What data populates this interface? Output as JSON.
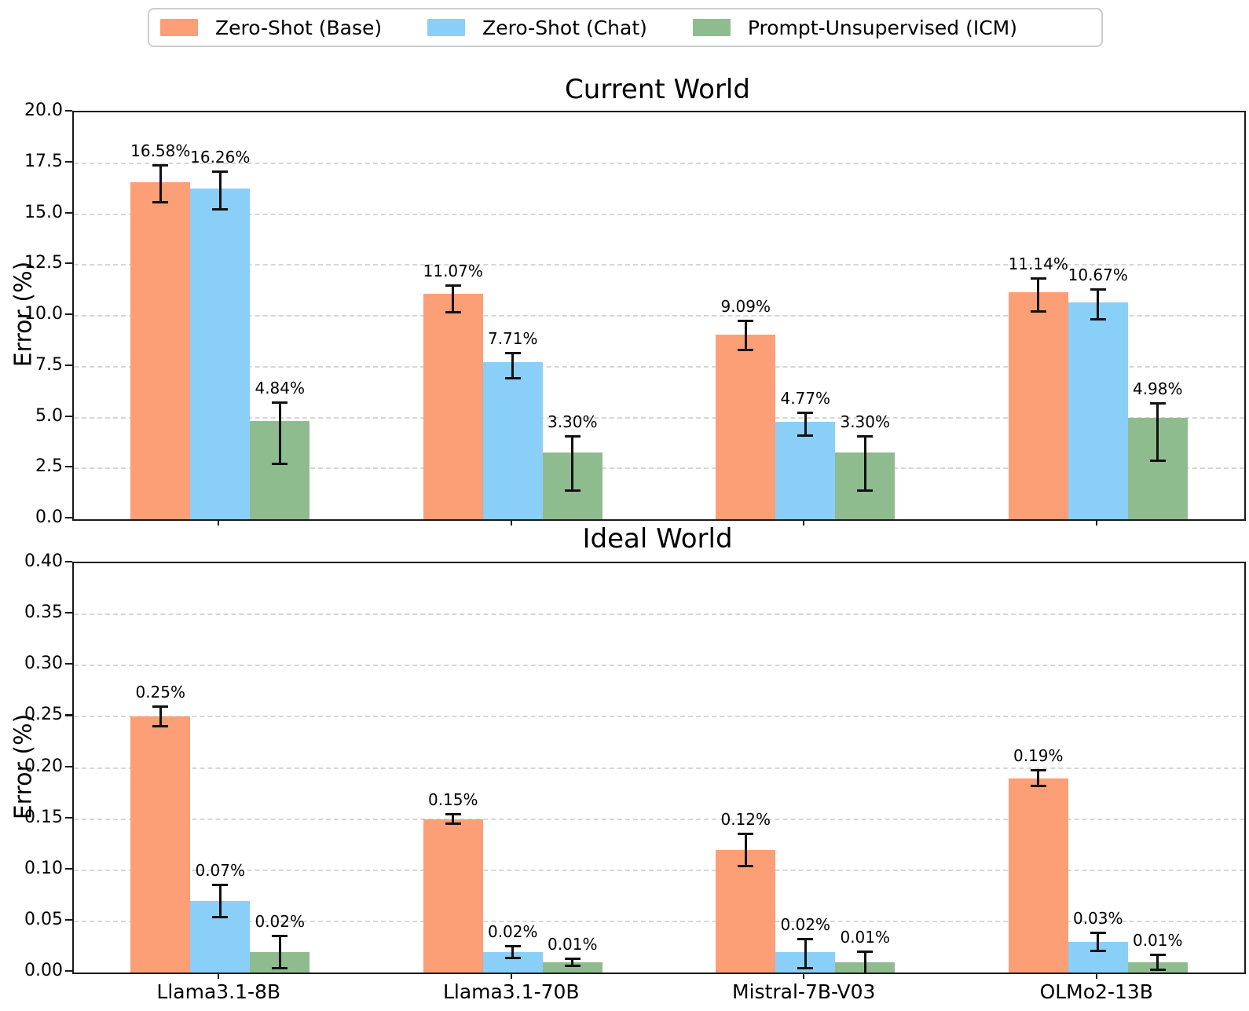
{
  "legend": {
    "items": [
      {
        "label": "Zero-Shot (Base)",
        "color": "#FC9E76"
      },
      {
        "label": "Zero-Shot (Chat)",
        "color": "#89CFF8"
      },
      {
        "label": "Prompt-Unsupervised (ICM)",
        "color": "#8FBC8F"
      }
    ]
  },
  "chart_data": [
    {
      "type": "bar",
      "title": "Current World",
      "ylabel": "Error (%)",
      "ylim": [
        0,
        20
      ],
      "ytick_labels": [
        "0.0",
        "2.5",
        "5.0",
        "7.5",
        "10.0",
        "12.5",
        "15.0",
        "17.5",
        "20.0"
      ],
      "grid": "horizontal-dashed",
      "legend_position": "top-outside",
      "categories": [
        "Llama3.1-8B",
        "Llama3.1-70B",
        "Mistral-7B-V03",
        "OLMo2-13B"
      ],
      "show_category_labels": false,
      "series": [
        {
          "name": "Zero-Shot (Base)",
          "color": "#FC9E76",
          "values": [
            16.58,
            11.07,
            9.09,
            11.14
          ],
          "labels": [
            "16.58%",
            "11.07%",
            "9.09%",
            "11.14%"
          ],
          "err_lo": [
            15.55,
            10.15,
            8.3,
            10.2
          ],
          "err_hi": [
            17.4,
            11.5,
            9.75,
            11.85
          ]
        },
        {
          "name": "Zero-Shot (Chat)",
          "color": "#89CFF8",
          "values": [
            16.26,
            7.71,
            4.77,
            10.67
          ],
          "labels": [
            "16.26%",
            "7.71%",
            "4.77%",
            "10.67%"
          ],
          "err_lo": [
            15.2,
            6.9,
            4.1,
            9.8
          ],
          "err_hi": [
            17.1,
            8.2,
            5.25,
            11.3
          ]
        },
        {
          "name": "Prompt-Unsupervised (ICM)",
          "color": "#8FBC8F",
          "values": [
            4.84,
            3.3,
            3.3,
            4.98
          ],
          "labels": [
            "4.84%",
            "3.30%",
            "3.30%",
            "4.98%"
          ],
          "err_lo": [
            2.7,
            1.4,
            1.4,
            2.85
          ],
          "err_hi": [
            5.75,
            4.1,
            4.1,
            5.7
          ]
        }
      ]
    },
    {
      "type": "bar",
      "title": "Ideal World",
      "ylabel": "Error (%)",
      "ylim": [
        0,
        0.4
      ],
      "ytick_labels": [
        "0.00",
        "0.05",
        "0.10",
        "0.15",
        "0.20",
        "0.25",
        "0.30",
        "0.35",
        "0.40"
      ],
      "grid": "horizontal-dashed",
      "categories": [
        "Llama3.1-8B",
        "Llama3.1-70B",
        "Mistral-7B-V03",
        "OLMo2-13B"
      ],
      "show_category_labels": true,
      "series": [
        {
          "name": "Zero-Shot (Base)",
          "color": "#FC9E76",
          "values": [
            0.25,
            0.15,
            0.12,
            0.19
          ],
          "labels": [
            "0.25%",
            "0.15%",
            "0.12%",
            "0.19%"
          ],
          "err_lo": [
            0.24,
            0.145,
            0.104,
            0.182
          ],
          "err_hi": [
            0.26,
            0.155,
            0.136,
            0.198
          ]
        },
        {
          "name": "Zero-Shot (Chat)",
          "color": "#89CFF8",
          "values": [
            0.07,
            0.02,
            0.02,
            0.03
          ],
          "labels": [
            "0.07%",
            "0.02%",
            "0.02%",
            "0.03%"
          ],
          "err_lo": [
            0.054,
            0.014,
            0.004,
            0.021
          ],
          "err_hi": [
            0.086,
            0.026,
            0.033,
            0.039
          ]
        },
        {
          "name": "Prompt-Unsupervised (ICM)",
          "color": "#8FBC8F",
          "values": [
            0.02,
            0.01,
            0.01,
            0.01
          ],
          "labels": [
            "0.02%",
            "0.01%",
            "0.01%",
            "0.01%"
          ],
          "err_lo": [
            0.004,
            0.006,
            -0.002,
            0.002
          ],
          "err_hi": [
            0.036,
            0.014,
            0.021,
            0.018
          ]
        }
      ]
    }
  ]
}
